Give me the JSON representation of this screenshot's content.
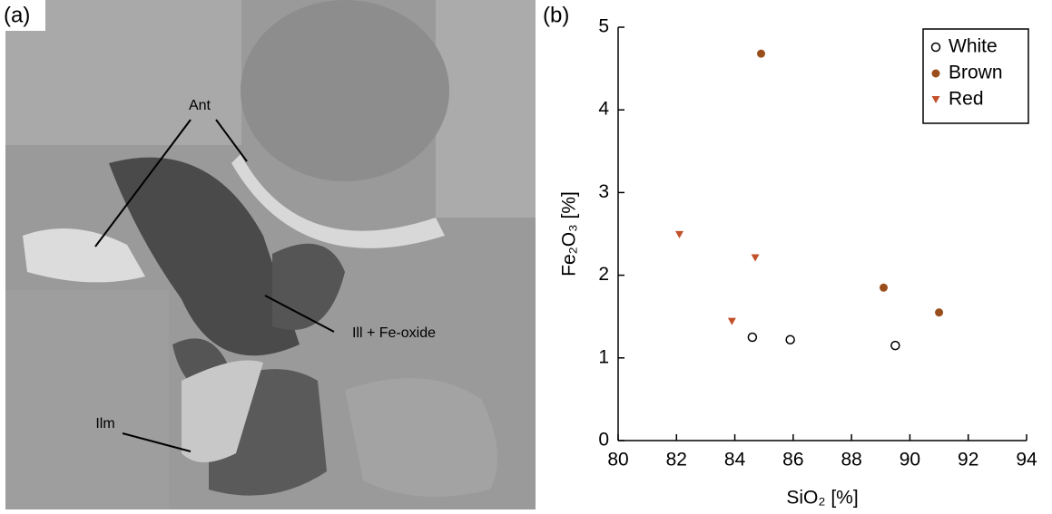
{
  "panel_a": {
    "label": "(a)",
    "annotations": [
      "Ant",
      "Ill + Fe-oxide",
      "Ilm"
    ]
  },
  "chart_data": {
    "type": "scatter",
    "panel_label": "(b)",
    "x_label": "SiO₂ [%]",
    "y_label": "Fe₂O₃ [%]",
    "xlim": [
      80,
      94
    ],
    "xticks": [
      80,
      82,
      84,
      86,
      88,
      90,
      92,
      94
    ],
    "ylim": [
      0,
      5
    ],
    "yticks": [
      0,
      1,
      2,
      3,
      4,
      5
    ],
    "legend": "top-right",
    "series": [
      {
        "name": "White",
        "color": "#000000",
        "marker": "open-circle",
        "x": [
          84.6,
          85.9,
          89.5
        ],
        "values": [
          1.25,
          1.22,
          1.15
        ]
      },
      {
        "name": "Brown",
        "color": "#9a4e1c",
        "marker": "circle",
        "x": [
          84.9,
          89.1,
          91.0
        ],
        "values": [
          4.68,
          1.85,
          1.55
        ]
      },
      {
        "name": "Red",
        "color": "#c2502a",
        "marker": "triangle-down",
        "x": [
          82.1,
          84.7,
          83.9
        ],
        "values": [
          2.49,
          2.21,
          1.44
        ]
      }
    ]
  }
}
